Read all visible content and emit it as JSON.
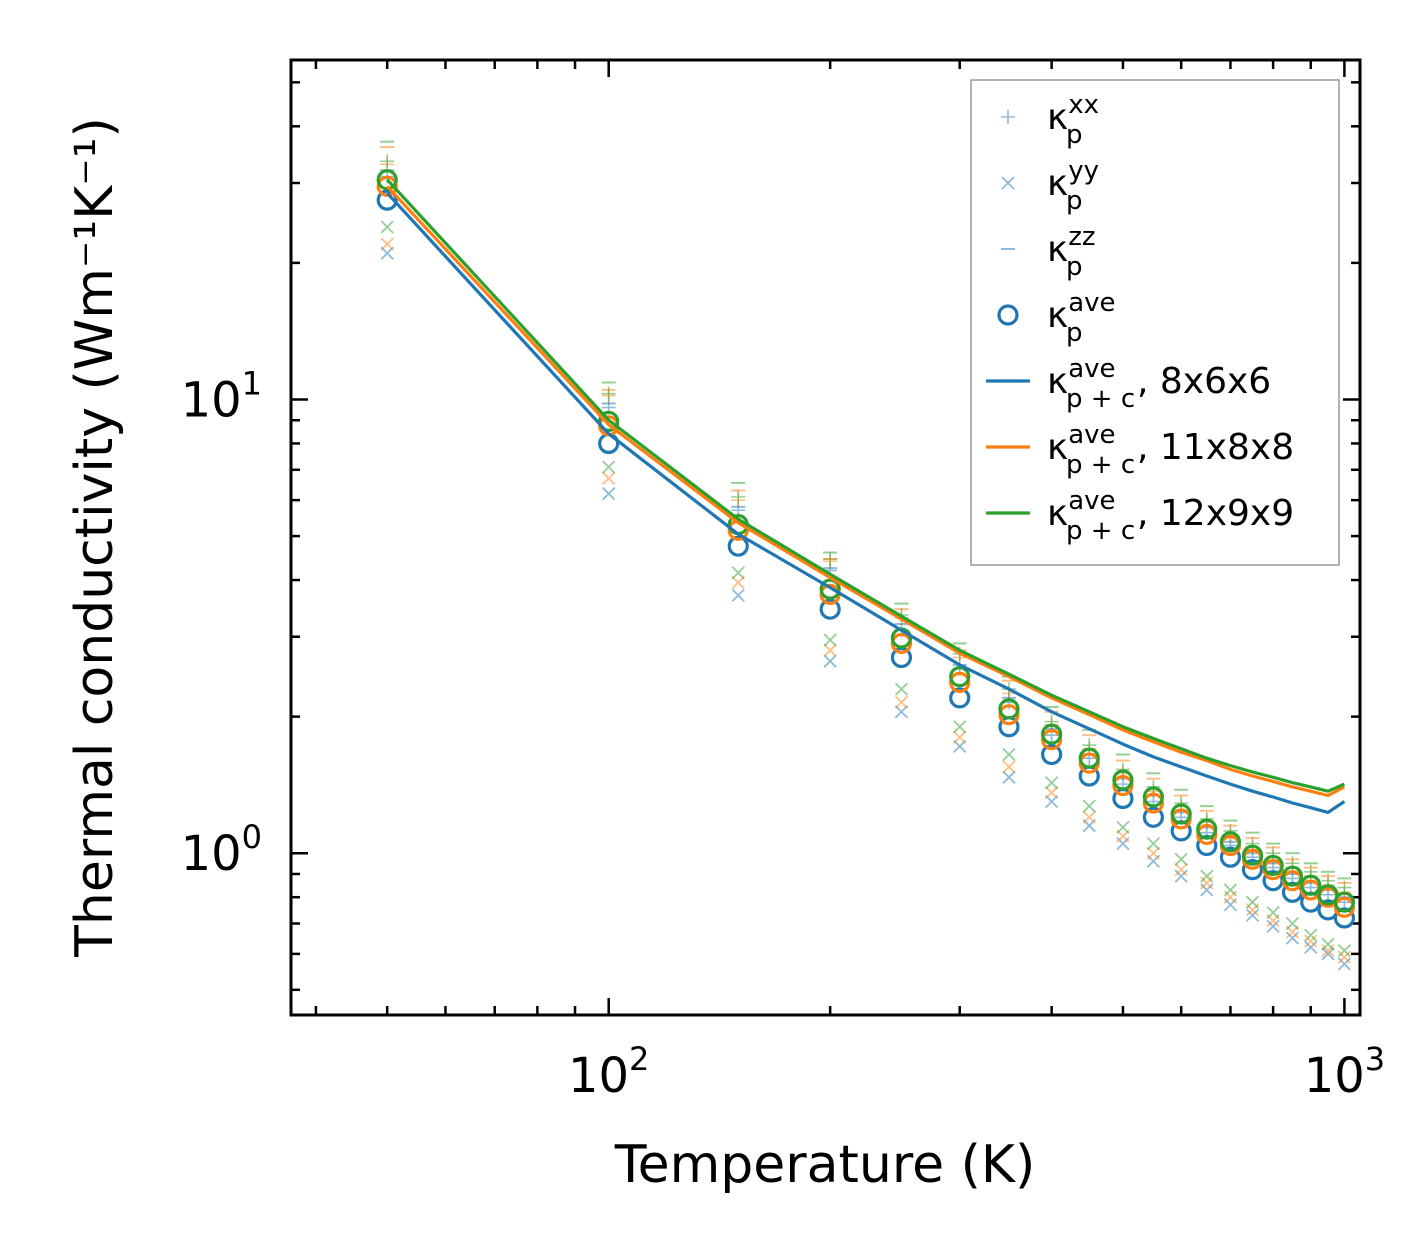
{
  "chart_data": {
    "type": "scatter",
    "xscale": "log",
    "yscale": "log",
    "xlabel": "Temperature (K)",
    "ylabel": "Thermal conductivity (Wm⁻¹K⁻¹)",
    "xlim": [
      37,
      1050
    ],
    "ylim": [
      0.44,
      56
    ],
    "x_ticks": [
      {
        "base": "10",
        "exp": "2",
        "value": 100
      },
      {
        "base": "10",
        "exp": "3",
        "value": 1000
      }
    ],
    "y_ticks": [
      {
        "base": "10",
        "exp": "0",
        "value": 1
      },
      {
        "base": "10",
        "exp": "1",
        "value": 10
      }
    ],
    "x": [
      50,
      100,
      150,
      200,
      250,
      300,
      350,
      400,
      450,
      500,
      550,
      600,
      650,
      700,
      750,
      800,
      850,
      900,
      950,
      1000
    ],
    "colors": {
      "c1": "#1f77b4",
      "c2": "#ff7f0e",
      "c3": "#2ca02c"
    },
    "legend_location": "upper right",
    "legend": [
      {
        "kind": "plus",
        "sup": "xx",
        "sub": "p",
        "suffix": ""
      },
      {
        "kind": "cross",
        "sup": "yy",
        "sub": "p",
        "suffix": ""
      },
      {
        "kind": "dash",
        "sup": "zz",
        "sub": "p",
        "suffix": ""
      },
      {
        "kind": "circle",
        "sup": "ave",
        "sub": "p",
        "suffix": ""
      },
      {
        "kind": "line",
        "color": "#1f77b4",
        "sup": "ave",
        "sub": "p + c",
        "suffix": ", 8x6x6"
      },
      {
        "kind": "line",
        "color": "#ff7f0e",
        "sup": "ave",
        "sub": "p + c",
        "suffix": ", 11x8x8"
      },
      {
        "kind": "line",
        "color": "#2ca02c",
        "sup": "ave",
        "sub": "p + c",
        "suffix": ", 12x9x9"
      }
    ],
    "series": [
      {
        "name": "κ_p^xx 8x6x6",
        "marker": "plus",
        "color": "#1f77b4",
        "values": [
          31,
          9.6,
          5.7,
          4.2,
          3.1,
          2.55,
          2.15,
          1.82,
          1.62,
          1.42,
          1.3,
          1.2,
          1.11,
          1.04,
          0.98,
          0.93,
          0.88,
          0.84,
          0.81,
          0.78
        ]
      },
      {
        "name": "κ_p^xx 11x8x8",
        "marker": "plus",
        "color": "#ff7f0e",
        "values": [
          33,
          10.2,
          6.0,
          4.4,
          3.3,
          2.7,
          2.25,
          1.92,
          1.7,
          1.5,
          1.37,
          1.27,
          1.17,
          1.1,
          1.03,
          0.98,
          0.93,
          0.89,
          0.85,
          0.82
        ]
      },
      {
        "name": "κ_p^xx 12x9x9",
        "marker": "plus",
        "color": "#2ca02c",
        "values": [
          33.5,
          10.3,
          6.1,
          4.45,
          3.35,
          2.75,
          2.3,
          1.95,
          1.73,
          1.53,
          1.4,
          1.29,
          1.19,
          1.12,
          1.05,
          1.0,
          0.95,
          0.91,
          0.87,
          0.84
        ]
      },
      {
        "name": "κ_p^yy 8x6x6",
        "marker": "cross",
        "color": "#1f77b4",
        "values": [
          21,
          6.2,
          3.7,
          2.65,
          2.05,
          1.72,
          1.47,
          1.3,
          1.15,
          1.05,
          0.96,
          0.89,
          0.83,
          0.77,
          0.73,
          0.69,
          0.65,
          0.62,
          0.6,
          0.57
        ]
      },
      {
        "name": "κ_p^yy 11x8x8",
        "marker": "cross",
        "color": "#ff7f0e",
        "values": [
          22,
          6.7,
          3.95,
          2.8,
          2.15,
          1.8,
          1.55,
          1.36,
          1.2,
          1.09,
          1.0,
          0.92,
          0.86,
          0.8,
          0.75,
          0.71,
          0.67,
          0.64,
          0.61,
          0.59
        ]
      },
      {
        "name": "κ_p^yy 12x9x9",
        "marker": "cross",
        "color": "#2ca02c",
        "values": [
          24,
          7.1,
          4.15,
          2.95,
          2.3,
          1.9,
          1.65,
          1.43,
          1.27,
          1.14,
          1.05,
          0.97,
          0.89,
          0.83,
          0.78,
          0.74,
          0.7,
          0.66,
          0.63,
          0.61
        ]
      },
      {
        "name": "κ_p^zz 8x6x6",
        "marker": "dash",
        "color": "#1f77b4",
        "values": [
          32,
          9.8,
          5.8,
          4.25,
          3.2,
          2.6,
          2.2,
          1.88,
          1.65,
          1.46,
          1.34,
          1.23,
          1.14,
          1.06,
          1.0,
          0.95,
          0.9,
          0.86,
          0.83,
          0.8
        ]
      },
      {
        "name": "κ_p^zz 11x8x8",
        "marker": "dash",
        "color": "#ff7f0e",
        "values": [
          36,
          10.5,
          6.3,
          4.45,
          3.45,
          2.8,
          2.4,
          2.05,
          1.82,
          1.6,
          1.46,
          1.34,
          1.24,
          1.15,
          1.08,
          1.03,
          0.97,
          0.93,
          0.89,
          0.86
        ]
      },
      {
        "name": "κ_p^zz 12x9x9",
        "marker": "dash",
        "color": "#2ca02c",
        "values": [
          37,
          10.9,
          6.55,
          4.6,
          3.55,
          2.9,
          2.45,
          2.1,
          1.87,
          1.65,
          1.5,
          1.38,
          1.27,
          1.18,
          1.11,
          1.05,
          1.0,
          0.95,
          0.91,
          0.88
        ]
      },
      {
        "name": "κ_p^ave 8x6x6",
        "marker": "circle",
        "color": "#1f77b4",
        "values": [
          27.5,
          8.0,
          4.75,
          3.45,
          2.7,
          2.2,
          1.9,
          1.65,
          1.48,
          1.32,
          1.2,
          1.12,
          1.04,
          0.98,
          0.92,
          0.87,
          0.82,
          0.78,
          0.75,
          0.72
        ]
      },
      {
        "name": "κ_p^ave 11x8x8",
        "marker": "circle",
        "color": "#ff7f0e",
        "values": [
          29.5,
          8.75,
          5.15,
          3.72,
          2.9,
          2.38,
          2.02,
          1.78,
          1.58,
          1.41,
          1.29,
          1.19,
          1.1,
          1.04,
          0.97,
          0.92,
          0.87,
          0.83,
          0.8,
          0.76
        ]
      },
      {
        "name": "κ_p^ave 12x9x9",
        "marker": "circle",
        "color": "#2ca02c",
        "values": [
          30.5,
          8.95,
          5.3,
          3.82,
          2.98,
          2.45,
          2.08,
          1.83,
          1.62,
          1.45,
          1.33,
          1.22,
          1.13,
          1.06,
          0.99,
          0.94,
          0.89,
          0.85,
          0.81,
          0.78
        ]
      },
      {
        "name": "κ_p+c^ave, 8x6x6",
        "marker": "line",
        "color": "#1f77b4",
        "values": [
          28.5,
          8.4,
          5.05,
          3.85,
          3.1,
          2.6,
          2.3,
          2.05,
          1.88,
          1.74,
          1.63,
          1.55,
          1.48,
          1.42,
          1.37,
          1.33,
          1.29,
          1.26,
          1.23,
          1.3
        ]
      },
      {
        "name": "κ_p+c^ave, 11x8x8",
        "marker": "line",
        "color": "#ff7f0e",
        "values": [
          29.5,
          8.8,
          5.35,
          4.05,
          3.28,
          2.76,
          2.45,
          2.2,
          2.02,
          1.87,
          1.76,
          1.67,
          1.6,
          1.53,
          1.48,
          1.44,
          1.4,
          1.37,
          1.34,
          1.4
        ]
      },
      {
        "name": "κ_p+c^ave, 12x9x9",
        "marker": "line",
        "color": "#2ca02c",
        "values": [
          30.5,
          9.0,
          5.45,
          4.12,
          3.33,
          2.8,
          2.48,
          2.23,
          2.05,
          1.9,
          1.79,
          1.7,
          1.62,
          1.56,
          1.51,
          1.47,
          1.43,
          1.4,
          1.37,
          1.42
        ]
      }
    ]
  }
}
